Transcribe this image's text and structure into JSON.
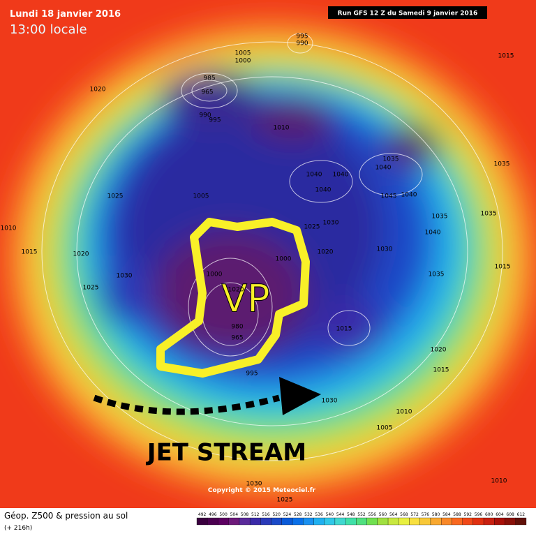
{
  "header": {
    "date": "Lundi 18 janvier 2016",
    "time": "13:00 locale",
    "run": "Run GFS 12 Z du Samedi 9 janvier 2016"
  },
  "annotations": {
    "vp": "VP",
    "jet_stream": "JET STREAM"
  },
  "pressure_labels": [
    1005,
    1000,
    995,
    990,
    1020,
    985,
    965,
    990,
    995,
    1010,
    1015,
    1035,
    1040,
    1040,
    1040,
    1040,
    1045,
    1040,
    1035,
    1025,
    1005,
    1035,
    1035,
    1010,
    1030,
    1025,
    1040,
    1015,
    1020,
    1000,
    1020,
    1030,
    1015,
    1030,
    1000,
    1025,
    1035,
    1015,
    1020,
    1015,
    995,
    1030,
    1010,
    1005,
    1030,
    1025,
    1010,
    980,
    965,
    1020
  ],
  "footer": {
    "copyright": "Copyright © 2015 Meteociel.fr",
    "title": "Géop. Z500 & pression au sol",
    "lead_time": "(+ 216h)"
  },
  "scale": [
    {
      "value": 492,
      "color": "#3a003f"
    },
    {
      "value": 496,
      "color": "#4b0050"
    },
    {
      "value": 500,
      "color": "#5c0061"
    },
    {
      "value": 504,
      "color": "#6d1a7a"
    },
    {
      "value": 508,
      "color": "#5a2a9a"
    },
    {
      "value": 512,
      "color": "#3a2aa8"
    },
    {
      "value": 516,
      "color": "#2a3ab8"
    },
    {
      "value": 520,
      "color": "#1a4ac8"
    },
    {
      "value": 524,
      "color": "#0a5ad8"
    },
    {
      "value": 528,
      "color": "#0a70e8"
    },
    {
      "value": 532,
      "color": "#1a90f0"
    },
    {
      "value": 536,
      "color": "#20b0f0"
    },
    {
      "value": 540,
      "color": "#30c8e8"
    },
    {
      "value": 544,
      "color": "#40d8d0"
    },
    {
      "value": 548,
      "color": "#40e0a8"
    },
    {
      "value": 552,
      "color": "#50e080"
    },
    {
      "value": 556,
      "color": "#70e050"
    },
    {
      "value": 560,
      "color": "#a0e040"
    },
    {
      "value": 564,
      "color": "#c8e840"
    },
    {
      "value": 568,
      "color": "#e8f040"
    },
    {
      "value": 572,
      "color": "#f8e040"
    },
    {
      "value": 576,
      "color": "#f8c838"
    },
    {
      "value": 580,
      "color": "#f8a830"
    },
    {
      "value": 584,
      "color": "#f88828"
    },
    {
      "value": 588,
      "color": "#f86820"
    },
    {
      "value": 592,
      "color": "#f04818"
    },
    {
      "value": 596,
      "color": "#e03010"
    },
    {
      "value": 600,
      "color": "#c82010"
    },
    {
      "value": 604,
      "color": "#a81008"
    },
    {
      "value": 608,
      "color": "#881008"
    },
    {
      "value": 612,
      "color": "#601008"
    }
  ]
}
